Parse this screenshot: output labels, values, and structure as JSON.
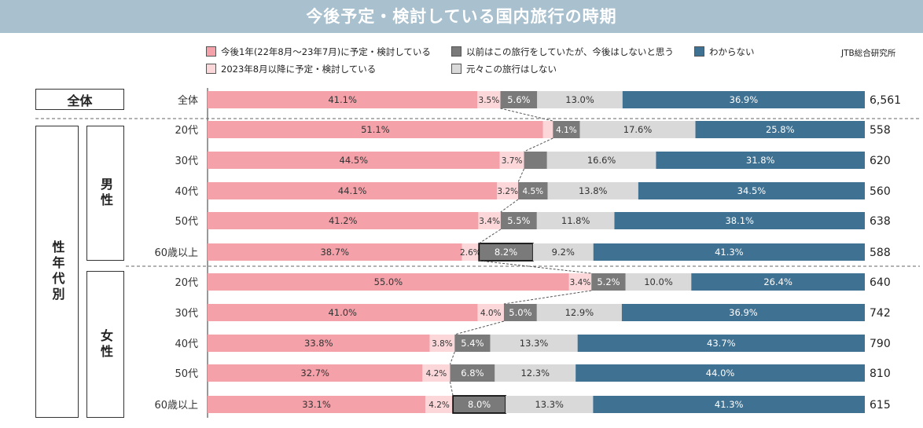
{
  "title": "今後予定・検討している国内旅行の時期",
  "source": "JTB総合研究所",
  "groups": {
    "overall": "全体",
    "by_gender_age": "性年代別",
    "male": "男性",
    "female": "女性"
  },
  "colors": {
    "s1": "#f4a1a9",
    "s2": "#fbd7d9",
    "s3": "#7a7a7a",
    "s4": "#d9d9d9",
    "s5": "#3f7192"
  },
  "chart_data": {
    "type": "bar",
    "orientation": "horizontal-stacked-100",
    "categories": [
      "全体",
      "20代",
      "30代",
      "40代",
      "50代",
      "60歳以上",
      "20代",
      "30代",
      "40代",
      "50代",
      "60歳以上"
    ],
    "series": [
      {
        "name": "今後1年(22年8月～23年7月)に予定・検討している",
        "values": [
          41.1,
          51.1,
          44.5,
          44.1,
          41.2,
          38.7,
          55.0,
          41.0,
          33.8,
          32.7,
          33.1
        ]
      },
      {
        "name": "2023年8月以降に予定・検討している",
        "values": [
          3.5,
          1.5,
          3.7,
          3.2,
          3.4,
          2.6,
          3.4,
          4.0,
          3.8,
          4.2,
          4.2
        ]
      },
      {
        "name": "以前はこの旅行をしていたが、今後はしないと思う",
        "values": [
          5.6,
          4.1,
          3.5,
          4.5,
          5.5,
          8.2,
          5.2,
          5.0,
          5.4,
          6.8,
          8.0
        ]
      },
      {
        "name": "元々この旅行はしない",
        "values": [
          13.0,
          17.6,
          16.6,
          13.8,
          11.8,
          9.2,
          10.0,
          12.9,
          13.3,
          12.3,
          13.3
        ]
      },
      {
        "name": "わからない",
        "values": [
          36.9,
          25.8,
          31.8,
          34.5,
          38.1,
          41.3,
          26.4,
          36.9,
          43.7,
          44.0,
          41.3
        ]
      }
    ],
    "labels": [
      [
        "41.1%",
        "3.5%",
        "5.6%",
        "13.0%",
        "36.9%"
      ],
      [
        "51.1%",
        "",
        "4.1%",
        "17.6%",
        "25.8%"
      ],
      [
        "44.5%",
        "3.7%",
        "",
        "16.6%",
        "31.8%"
      ],
      [
        "44.1%",
        "3.2%",
        "4.5%",
        "13.8%",
        "34.5%"
      ],
      [
        "41.2%",
        "3.4%",
        "5.5%",
        "11.8%",
        "38.1%"
      ],
      [
        "38.7%",
        "2.6%",
        "8.2%",
        "9.2%",
        "41.3%"
      ],
      [
        "55.0%",
        "3.4%",
        "5.2%",
        "10.0%",
        "26.4%"
      ],
      [
        "41.0%",
        "4.0%",
        "5.0%",
        "12.9%",
        "36.9%"
      ],
      [
        "33.8%",
        "3.8%",
        "5.4%",
        "13.3%",
        "43.7%"
      ],
      [
        "32.7%",
        "4.2%",
        "6.8%",
        "12.3%",
        "44.0%"
      ],
      [
        "33.1%",
        "4.2%",
        "8.0%",
        "13.3%",
        "41.3%"
      ]
    ],
    "n": [
      "6,561",
      "558",
      "620",
      "560",
      "638",
      "588",
      "640",
      "742",
      "790",
      "810",
      "615"
    ],
    "highlighted_cells": [
      [
        5,
        2
      ],
      [
        10,
        2
      ]
    ],
    "xlim": [
      0,
      100
    ],
    "legend_position": "top"
  }
}
